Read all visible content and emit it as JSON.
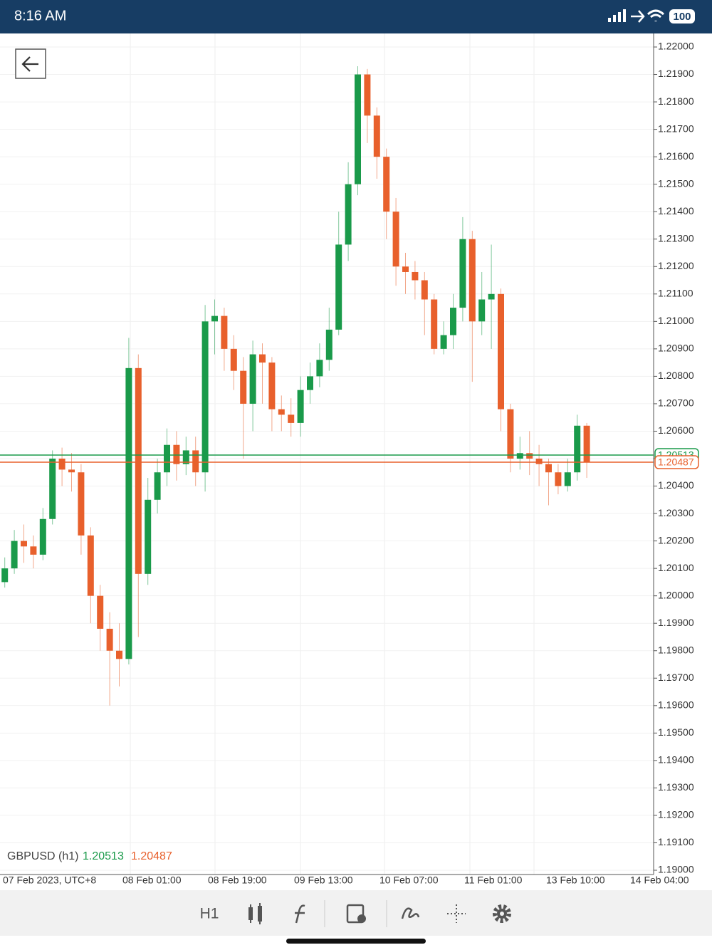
{
  "status_bar": {
    "time": "8:16 AM",
    "battery": "100"
  },
  "chart_data": {
    "type": "candlestick",
    "symbol": "GBPUSD (h1)",
    "bid": 1.20513,
    "ask": 1.20487,
    "up_color": "#1a9a4a",
    "down_color": "#e8602c",
    "xlabels": [
      "07 Feb 2023, UTC+8",
      "08 Feb 01:00",
      "08 Feb 19:00",
      "09 Feb 13:00",
      "10 Feb 07:00",
      "11 Feb 01:00",
      "13 Feb 10:00",
      "14 Feb 04:00"
    ],
    "open": [
      1.2005,
      1.201,
      1.202,
      1.2018,
      1.2015,
      1.2028,
      1.205,
      1.2046,
      1.2045,
      1.2022,
      1.2,
      1.1988,
      1.198,
      1.1977,
      1.2083,
      1.2008,
      1.2035,
      1.2045,
      1.2055,
      1.2048,
      1.2053,
      1.2045,
      1.21,
      1.2102,
      1.209,
      1.2082,
      1.207,
      1.2088,
      1.2085,
      1.2068,
      1.2066,
      1.2063,
      1.2075,
      1.208,
      1.2086,
      1.2097,
      1.2128,
      1.215,
      1.219,
      1.2175,
      1.216,
      1.214,
      1.212,
      1.2118,
      1.2115,
      1.2108,
      1.209,
      1.2095,
      1.2105,
      1.213,
      1.21,
      1.2108,
      1.211,
      1.2068,
      1.205,
      1.2052,
      1.205,
      1.2048,
      1.2045,
      1.204,
      1.2045,
      1.2062
    ],
    "high": [
      1.2014,
      1.2024,
      1.2026,
      1.2022,
      1.2032,
      1.2053,
      1.2054,
      1.2052,
      1.2048,
      1.2025,
      1.2004,
      1.1994,
      1.199,
      1.2094,
      1.2088,
      1.2043,
      1.205,
      1.2061,
      1.206,
      1.2058,
      1.2058,
      1.2106,
      1.2108,
      1.2105,
      1.2095,
      1.2087,
      1.2093,
      1.2092,
      1.2087,
      1.2073,
      1.2072,
      1.208,
      1.2085,
      1.2092,
      1.2105,
      1.214,
      1.2158,
      1.2193,
      1.2192,
      1.2178,
      1.2163,
      1.2145,
      1.2125,
      1.2122,
      1.2118,
      1.211,
      1.21,
      1.211,
      1.2138,
      1.2133,
      1.2118,
      1.2128,
      1.2112,
      1.207,
      1.2058,
      1.206,
      1.2055,
      1.205,
      1.2048,
      1.205,
      1.2066,
      1.2063
    ],
    "low": [
      1.2003,
      1.2008,
      1.2012,
      1.201,
      1.2013,
      1.2026,
      1.204,
      1.2038,
      1.2015,
      1.199,
      1.198,
      1.196,
      1.1967,
      1.1975,
      1.1985,
      1.2004,
      1.203,
      1.204,
      1.2042,
      1.2044,
      1.204,
      1.2038,
      1.2088,
      1.2082,
      1.2075,
      1.205,
      1.206,
      1.207,
      1.206,
      1.206,
      1.2058,
      1.2058,
      1.207,
      1.2076,
      1.2082,
      1.2095,
      1.2122,
      1.2146,
      1.2165,
      1.2152,
      1.213,
      1.2113,
      1.211,
      1.2108,
      1.2095,
      1.2088,
      1.2088,
      1.209,
      1.21,
      1.2078,
      1.2095,
      1.209,
      1.206,
      1.2045,
      1.2046,
      1.2044,
      1.204,
      1.2033,
      1.2037,
      1.2038,
      1.2042,
      1.2043
    ],
    "close": [
      1.201,
      1.202,
      1.2018,
      1.2015,
      1.2028,
      1.205,
      1.2046,
      1.2045,
      1.2022,
      1.2,
      1.1988,
      1.198,
      1.1977,
      1.2083,
      1.2008,
      1.2035,
      1.2045,
      1.2055,
      1.2048,
      1.2053,
      1.2045,
      1.21,
      1.2102,
      1.209,
      1.2082,
      1.207,
      1.2088,
      1.2085,
      1.2068,
      1.2066,
      1.2063,
      1.2075,
      1.208,
      1.2086,
      1.2097,
      1.2128,
      1.215,
      1.219,
      1.2175,
      1.216,
      1.214,
      1.212,
      1.2118,
      1.2115,
      1.2108,
      1.209,
      1.2095,
      1.2105,
      1.213,
      1.21,
      1.2108,
      1.211,
      1.2068,
      1.205,
      1.2052,
      1.205,
      1.2048,
      1.2045,
      1.204,
      1.2045,
      1.2062,
      1.20487
    ],
    "ylim": [
      1.19,
      1.22
    ],
    "yticks": [
      {
        "value": 1.22,
        "label": "1.22000"
      },
      {
        "value": 1.219,
        "label": "1.21900"
      },
      {
        "value": 1.218,
        "label": "1.21800"
      },
      {
        "value": 1.217,
        "label": "1.21700"
      },
      {
        "value": 1.216,
        "label": "1.21600"
      },
      {
        "value": 1.215,
        "label": "1.21500"
      },
      {
        "value": 1.214,
        "label": "1.21400"
      },
      {
        "value": 1.213,
        "label": "1.21300"
      },
      {
        "value": 1.212,
        "label": "1.21200"
      },
      {
        "value": 1.211,
        "label": "1.21100"
      },
      {
        "value": 1.21,
        "label": "1.21000"
      },
      {
        "value": 1.209,
        "label": "1.20900"
      },
      {
        "value": 1.208,
        "label": "1.20800"
      },
      {
        "value": 1.207,
        "label": "1.20700"
      },
      {
        "value": 1.206,
        "label": "1.20600"
      },
      {
        "value": 1.205,
        "label": "1.20500"
      },
      {
        "value": 1.204,
        "label": "1.20400"
      },
      {
        "value": 1.203,
        "label": "1.20300"
      },
      {
        "value": 1.202,
        "label": "1.20200"
      },
      {
        "value": 1.201,
        "label": "1.20100"
      },
      {
        "value": 1.2,
        "label": "1.20000"
      },
      {
        "value": 1.199,
        "label": "1.19900"
      },
      {
        "value": 1.198,
        "label": "1.19800"
      },
      {
        "value": 1.197,
        "label": "1.19700"
      },
      {
        "value": 1.196,
        "label": "1.19600"
      },
      {
        "value": 1.195,
        "label": "1.19500"
      },
      {
        "value": 1.194,
        "label": "1.19400"
      },
      {
        "value": 1.193,
        "label": "1.19300"
      },
      {
        "value": 1.192,
        "label": "1.19200"
      },
      {
        "value": 1.191,
        "label": "1.19100"
      },
      {
        "value": 1.19,
        "label": "1.19000"
      }
    ],
    "grid": true
  },
  "toolbar": {
    "timeframe": "H1"
  }
}
